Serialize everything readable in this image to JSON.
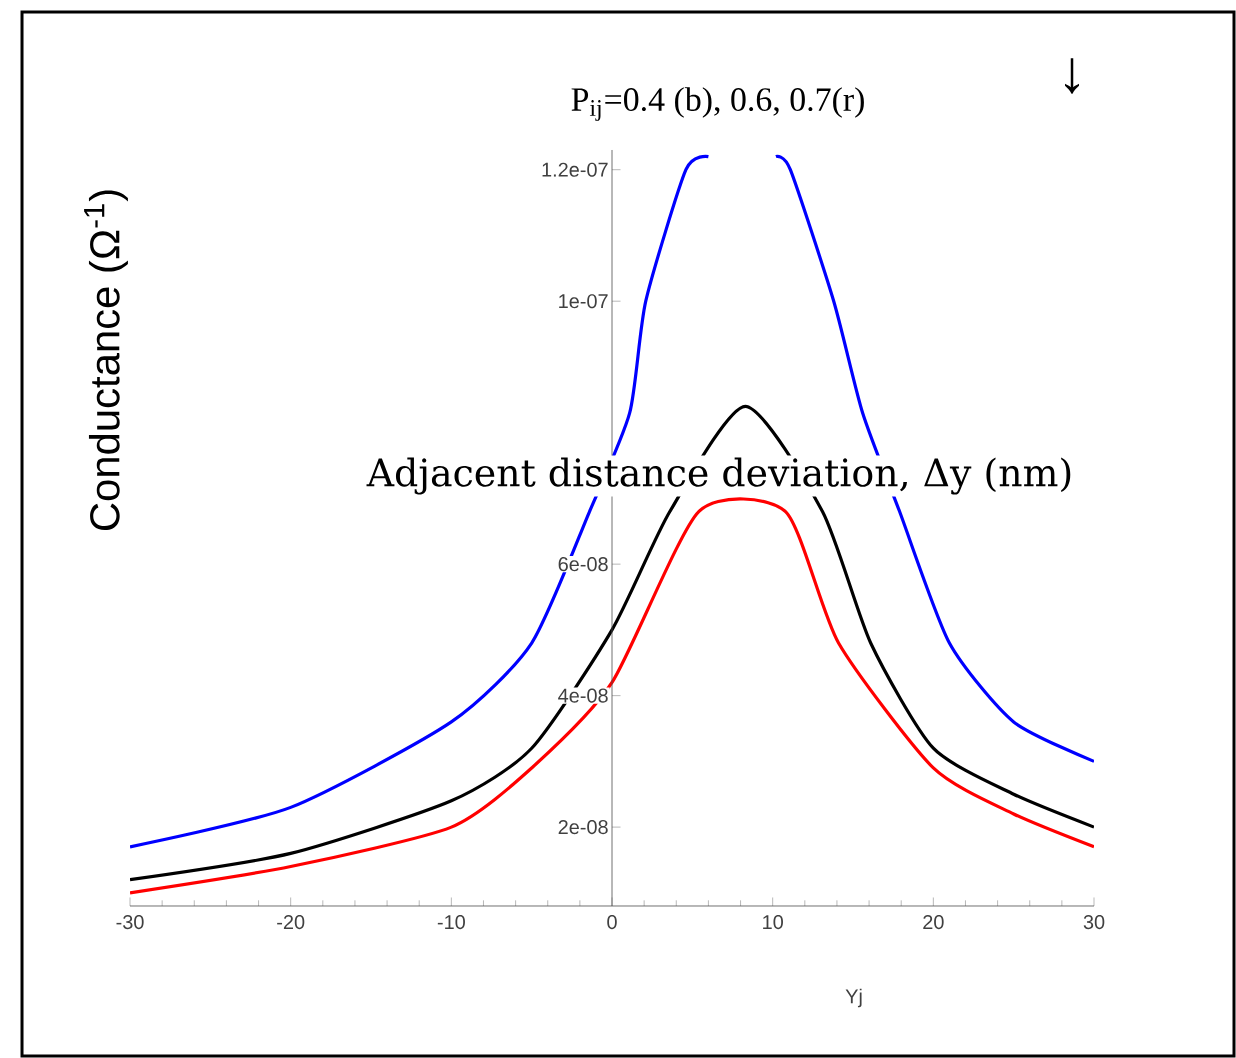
{
  "chart_data": {
    "type": "line",
    "title": "P$_{ij}$=0.4 (b), 0.6, 0.7(r)",
    "xlabel": "Yj",
    "ylabel": "Conductance (Ω$^{-1}$)",
    "annotations": [
      "Adjacent distance deviation, Δy (nm)",
      "↓"
    ],
    "xlim": [
      -30,
      30
    ],
    "xticks": [
      -30,
      -20,
      -10,
      0,
      10,
      20,
      30
    ],
    "ylim": [
      8e-09,
      1.23e-07
    ],
    "yticks": [
      {
        "value": 2e-08,
        "label": "2e-08"
      },
      {
        "value": 4e-08,
        "label": "4e-08"
      },
      {
        "value": 6e-08,
        "label": "6e-08"
      },
      {
        "value": 1e-07,
        "label": "1e-07"
      },
      {
        "value": 1.2e-07,
        "label": "1.2e-07"
      }
    ],
    "grid": false,
    "marker": "none",
    "line_style": "solid",
    "series": [
      {
        "color": "#0000ff",
        "x": [
          -30,
          -20,
          -10,
          -5,
          -1.4,
          1.1,
          2.1,
          4.6,
          6.0,
          8,
          10.2,
          11.1,
          13.8,
          15.6,
          17.9,
          21,
          25,
          30
        ],
        "values": [
          1.7e-08,
          2.3e-08,
          3.6e-08,
          4.8e-08,
          6.8e-08,
          8.3e-08,
          1e-07,
          1.2e-07,
          1.22e-07,
          null,
          1.22e-07,
          1.2e-07,
          1e-07,
          8.3e-08,
          6.8e-08,
          4.8e-08,
          3.6e-08,
          3e-08
        ]
      },
      {
        "color": "#000000",
        "x": [
          -30,
          -20,
          -10,
          -5,
          0,
          3.6,
          8.3,
          13.1,
          16.1,
          20,
          25,
          30
        ],
        "values": [
          1.2e-08,
          1.6e-08,
          2.4e-08,
          3.2e-08,
          5e-08,
          6.8e-08,
          8.4e-08,
          6.8e-08,
          4.8e-08,
          3.2e-08,
          2.5e-08,
          2e-08
        ]
      },
      {
        "color": "#ff0000",
        "x": [
          -30,
          -20,
          -10,
          -5,
          0,
          5.4,
          10.8,
          14.1,
          20,
          25,
          30
        ],
        "values": [
          1e-08,
          1.4e-08,
          2e-08,
          2.9e-08,
          4.2e-08,
          6.8e-08,
          6.8e-08,
          4.8e-08,
          2.9e-08,
          2.2e-08,
          1.7e-08
        ]
      }
    ]
  }
}
